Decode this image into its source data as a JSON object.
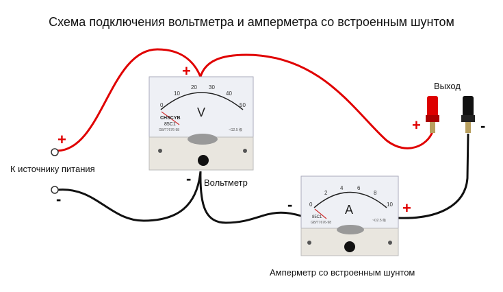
{
  "title": "Схема подключения вольтметра и амперметра со встроенным шунтом",
  "labels": {
    "source": "К источнику питания",
    "voltmeter": "Вольтметр",
    "ammeter": "Амперметр со встроенным шунтом",
    "output": "Выход"
  },
  "signs": {
    "plus": "+",
    "minus": "-"
  },
  "voltmeter": {
    "unit": "V",
    "scale": [
      "0",
      "10",
      "20",
      "30",
      "40",
      "50"
    ],
    "brand": "CHSCYB",
    "model": "85C1",
    "standard": "GB/T7676-98",
    "class": "~Ω2.5 级"
  },
  "ammeter": {
    "unit": "A",
    "scale": [
      "0",
      "2",
      "4",
      "6",
      "8",
      "10"
    ],
    "model": "85C1",
    "standard": "GB/T7676-98",
    "class": "~Ω2.5 级"
  },
  "colors": {
    "positive_wire": "#e00000",
    "negative_wire": "#111111",
    "plus_sign": "#e00000"
  }
}
